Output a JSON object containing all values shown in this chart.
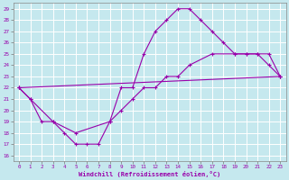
{
  "xlabel": "Windchill (Refroidissement éolien,°C)",
  "xlim": [
    -0.5,
    23.5
  ],
  "ylim": [
    15.5,
    29.5
  ],
  "xticks": [
    0,
    1,
    2,
    3,
    4,
    5,
    6,
    7,
    8,
    9,
    10,
    11,
    12,
    13,
    14,
    15,
    16,
    17,
    18,
    19,
    20,
    21,
    22,
    23
  ],
  "yticks": [
    16,
    17,
    18,
    19,
    20,
    21,
    22,
    23,
    24,
    25,
    26,
    27,
    28,
    29
  ],
  "bg_color": "#c5e8ee",
  "line_color": "#9900aa",
  "grid_color": "#ffffff",
  "line1_x": [
    0,
    1,
    2,
    3,
    4,
    5,
    6,
    7,
    8,
    9,
    10,
    11,
    12,
    13,
    14,
    15,
    16,
    17,
    18,
    19,
    20,
    21,
    22,
    23
  ],
  "line1_y": [
    22,
    21,
    19,
    19,
    18,
    17,
    17,
    17,
    19,
    22,
    22,
    25,
    27,
    28,
    29,
    29,
    28,
    27,
    26,
    25,
    25,
    25,
    24,
    23
  ],
  "line2_x": [
    0,
    1,
    3,
    5,
    8,
    9,
    10,
    11,
    12,
    13,
    14,
    15,
    17,
    19,
    20,
    21,
    22,
    23
  ],
  "line2_y": [
    22,
    21,
    19,
    18,
    19,
    20,
    21,
    22,
    22,
    23,
    23,
    24,
    25,
    25,
    25,
    25,
    25,
    23
  ],
  "line3_x": [
    0,
    23
  ],
  "line3_y": [
    22,
    23
  ]
}
